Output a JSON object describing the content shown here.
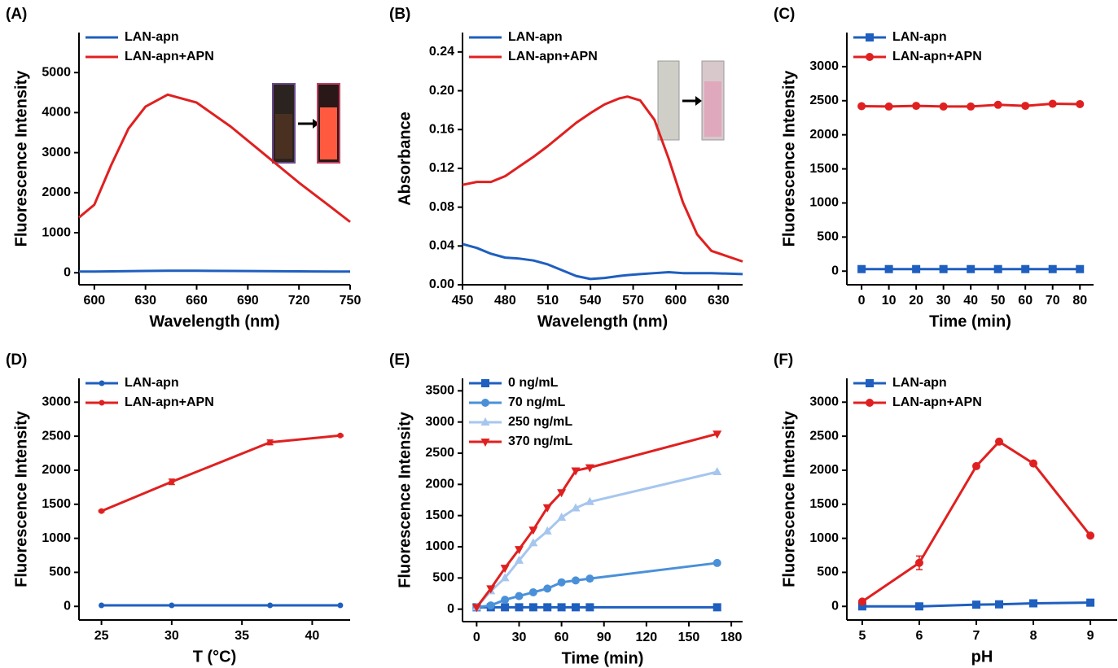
{
  "chart_data": [
    {
      "type": "line",
      "label": "(A)",
      "xlabel": "Wavelength (nm)",
      "ylabel": "Fluorescence Intensity",
      "xlim": [
        591,
        750
      ],
      "ylim": [
        -300,
        6000
      ],
      "xticks": [
        600,
        630,
        660,
        690,
        720,
        750
      ],
      "yticks": [
        0,
        1000,
        2000,
        3000,
        4000,
        5000
      ],
      "legend": "upper left",
      "x": [
        591,
        600,
        610,
        620,
        630,
        643,
        660,
        680,
        700,
        720,
        740,
        750
      ],
      "series": [
        {
          "name": "LAN-apn",
          "color": "#1f5fbf",
          "marker": "none",
          "values": [
            30,
            30,
            35,
            40,
            45,
            50,
            50,
            45,
            40,
            35,
            30,
            30
          ]
        },
        {
          "name": "LAN-apn+APN",
          "color": "#e02020",
          "marker": "none",
          "values": [
            1380,
            1700,
            2700,
            3600,
            4150,
            4450,
            4250,
            3650,
            2950,
            2250,
            1600,
            1270
          ]
        }
      ]
    },
    {
      "type": "line",
      "label": "(B)",
      "xlabel": "Wavelength (nm)",
      "ylabel": "Absorbance",
      "xlim": [
        450,
        647
      ],
      "ylim": [
        0,
        0.26
      ],
      "xticks": [
        450,
        480,
        510,
        540,
        570,
        600,
        630
      ],
      "yticks": [
        {
          "value": 0,
          "label": "0.00"
        },
        {
          "value": 0.04,
          "label": "0.04"
        },
        {
          "value": 0.08,
          "label": "0.08"
        },
        {
          "value": 0.12,
          "label": "0.12"
        },
        {
          "value": 0.16,
          "label": "0.16"
        },
        {
          "value": 0.2,
          "label": "0.20"
        },
        {
          "value": 0.24,
          "label": "0.24"
        }
      ],
      "legend": "upper left",
      "x": [
        450,
        460,
        470,
        480,
        490,
        500,
        510,
        520,
        530,
        540,
        550,
        560,
        566,
        575,
        585,
        595,
        605,
        615,
        625,
        647
      ],
      "series": [
        {
          "name": "LAN-apn",
          "color": "#1f5fbf",
          "marker": "none",
          "values": [
            0.042,
            0.038,
            0.032,
            0.028,
            0.027,
            0.025,
            0.021,
            0.015,
            0.009,
            0.006,
            0.007,
            0.009,
            0.01,
            0.011,
            0.012,
            0.013,
            0.012,
            0.012,
            0.012,
            0.011
          ]
        },
        {
          "name": "LAN-apn+APN",
          "color": "#e02020",
          "marker": "none",
          "values": [
            0.103,
            0.106,
            0.106,
            0.112,
            0.122,
            0.132,
            0.143,
            0.155,
            0.167,
            0.177,
            0.186,
            0.192,
            0.194,
            0.19,
            0.17,
            0.13,
            0.085,
            0.052,
            0.035,
            0.024
          ]
        }
      ]
    },
    {
      "type": "line",
      "label": "(C)",
      "xlabel": "Time (min)",
      "ylabel": "Fluorescence Intensity",
      "xlim": [
        -5.4,
        85
      ],
      "ylim": [
        -200,
        3500
      ],
      "xticks": [
        0,
        10,
        20,
        30,
        40,
        50,
        60,
        70,
        80
      ],
      "yticks": [
        0,
        500,
        1000,
        1500,
        2000,
        2500,
        3000
      ],
      "legend": "upper left",
      "x": [
        0,
        10,
        20,
        30,
        40,
        50,
        60,
        70,
        80
      ],
      "series": [
        {
          "name": "LAN-apn",
          "color": "#1f5fbf",
          "marker": "square",
          "values": [
            30,
            30,
            30,
            30,
            30,
            30,
            30,
            30,
            30
          ]
        },
        {
          "name": "LAN-apn+APN",
          "color": "#e02020",
          "marker": "circle",
          "values": [
            2420,
            2415,
            2425,
            2415,
            2415,
            2440,
            2425,
            2455,
            2450
          ]
        }
      ]
    },
    {
      "type": "line",
      "label": "(D)",
      "xlabel": "T (°C)",
      "ylabel": "Fluorescence Intensity",
      "xlim": [
        23.4,
        42.7
      ],
      "ylim": [
        -200,
        3350
      ],
      "xticks": [
        25,
        30,
        35,
        40
      ],
      "yticks": [
        0,
        500,
        1000,
        1500,
        2000,
        2500,
        3000
      ],
      "legend": "upper left",
      "x": [
        25,
        30,
        37,
        42
      ],
      "series": [
        {
          "name": "LAN-apn",
          "color": "#1f5fbf",
          "marker": "dot",
          "values": [
            15,
            15,
            15,
            15
          ]
        },
        {
          "name": "LAN-apn+APN",
          "color": "#e02020",
          "marker": "dot",
          "values": [
            1400,
            1830,
            2410,
            2510
          ],
          "errors": [
            10,
            40,
            35,
            10
          ]
        }
      ]
    },
    {
      "type": "line",
      "label": "(E)",
      "xlabel": "Time (min)",
      "ylabel": "Fluorescence Intensity",
      "xlim": [
        -10,
        188
      ],
      "ylim": [
        -200,
        3700
      ],
      "xticks": [
        0,
        30,
        60,
        90,
        120,
        150,
        180
      ],
      "yticks": [
        0,
        500,
        1000,
        1500,
        2000,
        2500,
        3000,
        3500
      ],
      "legend": "upper left",
      "x": [
        0,
        10,
        20,
        30,
        40,
        50,
        60,
        70,
        80,
        170
      ],
      "series": [
        {
          "name": "0 ng/mL",
          "color": "#1f5fbf",
          "marker": "square",
          "values": [
            30,
            30,
            30,
            30,
            30,
            30,
            30,
            30,
            30,
            30
          ]
        },
        {
          "name": "70 ng/mL",
          "color": "#4a90d9",
          "marker": "circle",
          "values": [
            30,
            60,
            150,
            210,
            270,
            330,
            430,
            460,
            490,
            740
          ]
        },
        {
          "name": "250 ng/mL",
          "color": "#a6c6ef",
          "marker": "triangle",
          "values": [
            30,
            290,
            500,
            780,
            1060,
            1250,
            1470,
            1620,
            1720,
            2200
          ]
        },
        {
          "name": "370 ng/mL",
          "color": "#e02020",
          "marker": "triangle-down",
          "values": [
            30,
            330,
            660,
            960,
            1270,
            1630,
            1870,
            2220,
            2270,
            2810
          ]
        }
      ]
    },
    {
      "type": "line",
      "label": "(F)",
      "xlabel": "pH",
      "ylabel": "Fluorescence Intensity",
      "xlim": [
        4.73,
        9.47
      ],
      "ylim": [
        -200,
        3350
      ],
      "xticks": [
        5,
        6,
        7,
        8,
        9
      ],
      "yticks": [
        0,
        500,
        1000,
        1500,
        2000,
        2500,
        3000
      ],
      "legend": "upper left",
      "x": [
        5,
        6,
        7,
        7.4,
        8,
        9
      ],
      "series": [
        {
          "name": "LAN-apn",
          "color": "#1f5fbf",
          "marker": "square",
          "values": [
            0,
            0,
            25,
            30,
            45,
            55
          ]
        },
        {
          "name": "LAN-apn+APN",
          "color": "#e02020",
          "marker": "circle",
          "values": [
            70,
            640,
            2060,
            2420,
            2100,
            1040
          ],
          "errors": [
            10,
            100,
            20,
            15,
            20,
            15
          ]
        }
      ]
    }
  ]
}
